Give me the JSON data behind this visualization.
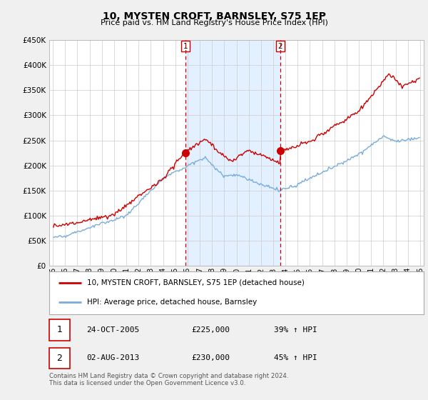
{
  "title": "10, MYSTEN CROFT, BARNSLEY, S75 1EP",
  "subtitle": "Price paid vs. HM Land Registry's House Price Index (HPI)",
  "hpi_label": "HPI: Average price, detached house, Barnsley",
  "property_label": "10, MYSTEN CROFT, BARNSLEY, S75 1EP (detached house)",
  "footer": "Contains HM Land Registry data © Crown copyright and database right 2024.\nThis data is licensed under the Open Government Licence v3.0.",
  "sale1": {
    "label": "1",
    "date": "24-OCT-2005",
    "price": "£225,000",
    "hpi": "39% ↑ HPI"
  },
  "sale2": {
    "label": "2",
    "date": "02-AUG-2013",
    "price": "£230,000",
    "hpi": "45% ↑ HPI"
  },
  "ylim": [
    0,
    450000
  ],
  "yticks": [
    0,
    50000,
    100000,
    150000,
    200000,
    250000,
    300000,
    350000,
    400000,
    450000
  ],
  "property_color": "#cc0000",
  "hpi_color": "#7aaddb",
  "vline_color": "#cc0000",
  "shading_color": "#ddeeff",
  "background_color": "#f0f0f0",
  "plot_bg_color": "#ffffff",
  "sale1_x": 2005.83,
  "sale1_y": 225000,
  "sale2_x": 2013.58,
  "sale2_y": 230000,
  "xlim_left": 1994.7,
  "xlim_right": 2025.3
}
